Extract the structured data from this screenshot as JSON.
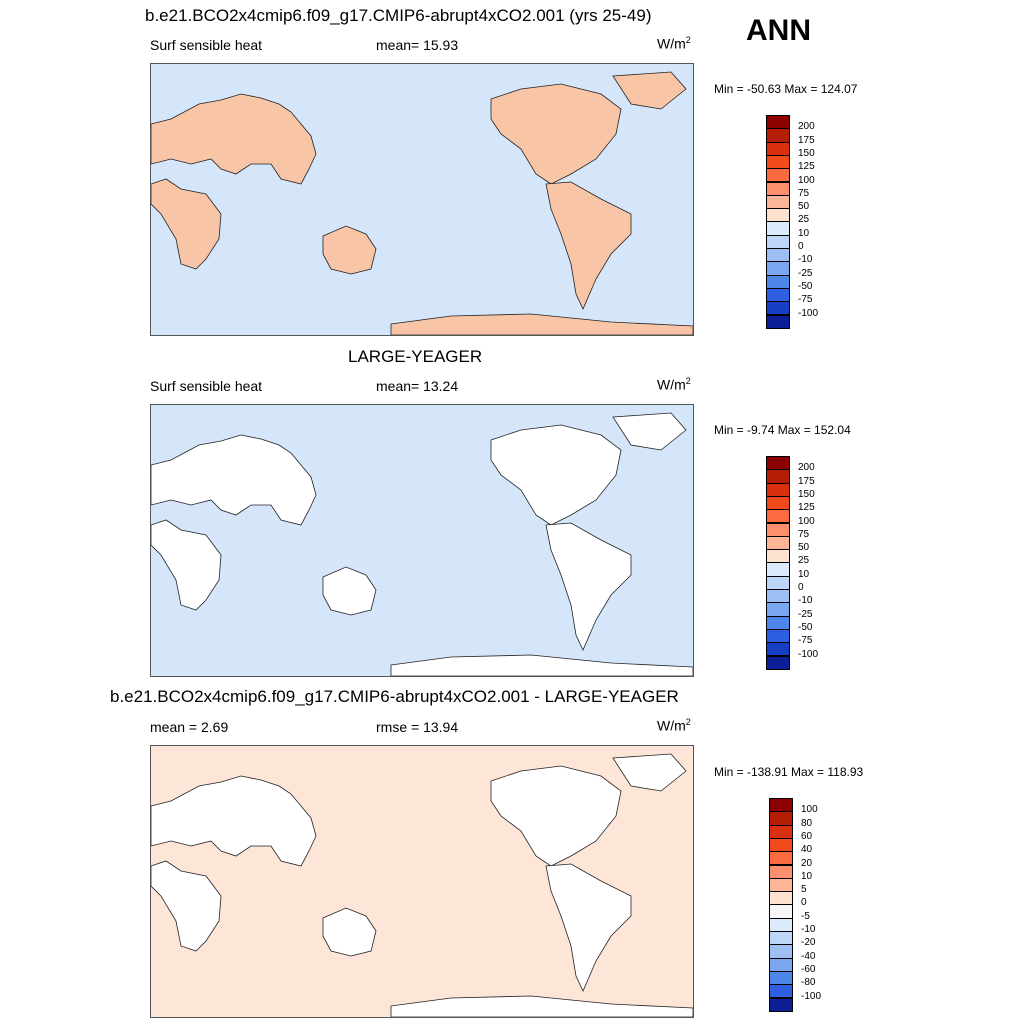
{
  "season": "ANN",
  "panels": [
    {
      "title": "b.e21.BCO2x4cmip6.f09_g17.CMIP6-abrupt4xCO2.001 (yrs 25-49)",
      "left_label": "Surf sensible heat",
      "center_label": "mean=  15.93",
      "units": "W/m",
      "units_sup": "2",
      "minmax": "Min = -50.63 Max = 124.07",
      "ocean_color": "#d6e6fa",
      "land_color": "#f8c6a7",
      "colorbar": {
        "labels": [
          "200",
          "175",
          "150",
          "125",
          "100",
          "75",
          "50",
          "25",
          "10",
          "0",
          "-10",
          "-25",
          "-50",
          "-75",
          "-100"
        ],
        "colors": [
          "#8b0000",
          "#b51d05",
          "#d9310f",
          "#f14a1c",
          "#fb6b3f",
          "#fc906e",
          "#fcb597",
          "#fde3cf",
          "#dcebfb",
          "#bdd5f7",
          "#9ebff3",
          "#7aa7ef",
          "#4f86ea",
          "#2d5fe0",
          "#173fc6",
          "#0d1f97"
        ]
      }
    },
    {
      "title": "LARGE-YEAGER",
      "left_label": "Surf sensible heat",
      "center_label": "mean=  13.24",
      "units": "W/m",
      "units_sup": "2",
      "minmax": "Min =  -9.74 Max = 152.04",
      "ocean_color": "#d6e6fa",
      "land_color": "#ffffff",
      "colorbar": {
        "labels": [
          "200",
          "175",
          "150",
          "125",
          "100",
          "75",
          "50",
          "25",
          "10",
          "0",
          "-10",
          "-25",
          "-50",
          "-75",
          "-100"
        ],
        "colors": [
          "#8b0000",
          "#b51d05",
          "#d9310f",
          "#f14a1c",
          "#fb6b3f",
          "#fc906e",
          "#fcb597",
          "#fde3cf",
          "#dcebfb",
          "#bdd5f7",
          "#9ebff3",
          "#7aa7ef",
          "#4f86ea",
          "#2d5fe0",
          "#173fc6",
          "#0d1f97"
        ]
      }
    },
    {
      "title": "b.e21.BCO2x4cmip6.f09_g17.CMIP6-abrupt4xCO2.001 - LARGE-YEAGER",
      "left_label": "mean =   2.69",
      "center_label": "rmse =  13.94",
      "units": "W/m",
      "units_sup": "2",
      "minmax": "Min = -138.91 Max = 118.93",
      "ocean_color": "#fde5d8",
      "land_color": "#ffffff",
      "colorbar": {
        "labels": [
          "100",
          "80",
          "60",
          "40",
          "20",
          "10",
          "5",
          "0",
          "-5",
          "-10",
          "-20",
          "-40",
          "-60",
          "-80",
          "-100"
        ],
        "colors": [
          "#8b0000",
          "#b51d05",
          "#d9310f",
          "#f14a1c",
          "#fb6b3f",
          "#fc906e",
          "#fcb597",
          "#fde3cf",
          "#f7f7f7",
          "#dcebfb",
          "#bdd5f7",
          "#9ebff3",
          "#7aa7ef",
          "#4f86ea",
          "#2d5fe0",
          "#0d1f97"
        ]
      }
    }
  ]
}
